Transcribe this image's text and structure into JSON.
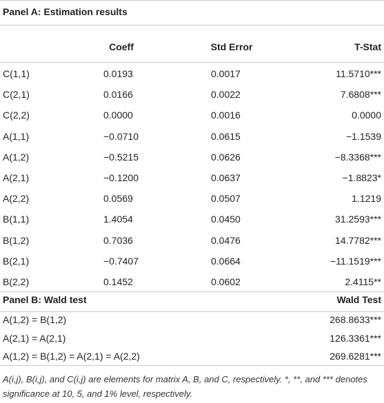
{
  "panel_a": {
    "title": "Panel A: Estimation results",
    "columns": [
      "Coeff",
      "Std Error",
      "T-Stat"
    ],
    "rows": [
      [
        "C(1,1)",
        "0.0193",
        "0.0017",
        "11.5710***"
      ],
      [
        "C(2,1)",
        "0.0166",
        "0.0022",
        "7.6808***"
      ],
      [
        "C(2,2)",
        "0.0000",
        "0.0016",
        "0.0000"
      ],
      [
        "A(1,1)",
        "−0.0710",
        "0.0615",
        "−1.1539"
      ],
      [
        "A(1,2)",
        "−0.5215",
        "0.0626",
        "−8.3368***"
      ],
      [
        "A(2,1)",
        "−0.1200",
        "0.0637",
        "−1.8823*"
      ],
      [
        "A(2,2)",
        "0.0569",
        "0.0507",
        "1.1219"
      ],
      [
        "B(1,1)",
        "1.4054",
        "0.0450",
        "31.2593***"
      ],
      [
        "B(1,2)",
        "0.7036",
        "0.0476",
        "14.7782***"
      ],
      [
        "B(2,1)",
        "−0.7407",
        "0.0664",
        "−11.1519***"
      ],
      [
        "B(2,2)",
        "0.1452",
        "0.0602",
        "2.4115**"
      ]
    ]
  },
  "panel_b": {
    "title": "Panel B: Wald test",
    "column": "Wald Test",
    "rows": [
      [
        "A(1,2) = B(1,2)",
        "268.8633***"
      ],
      [
        "A(2,1) = A(2,1)",
        "126.3361***"
      ],
      [
        "A(1,2) = B(1,2) = A(2,1) = A(2,2)",
        "269.6281***"
      ]
    ]
  },
  "footnote": "A(i,j), B(i,j), and C(i,j) are elements for matrix A, B, and C, respectively. *, **, and *** denotes significance at 10, 5, and 1% level, respectively."
}
